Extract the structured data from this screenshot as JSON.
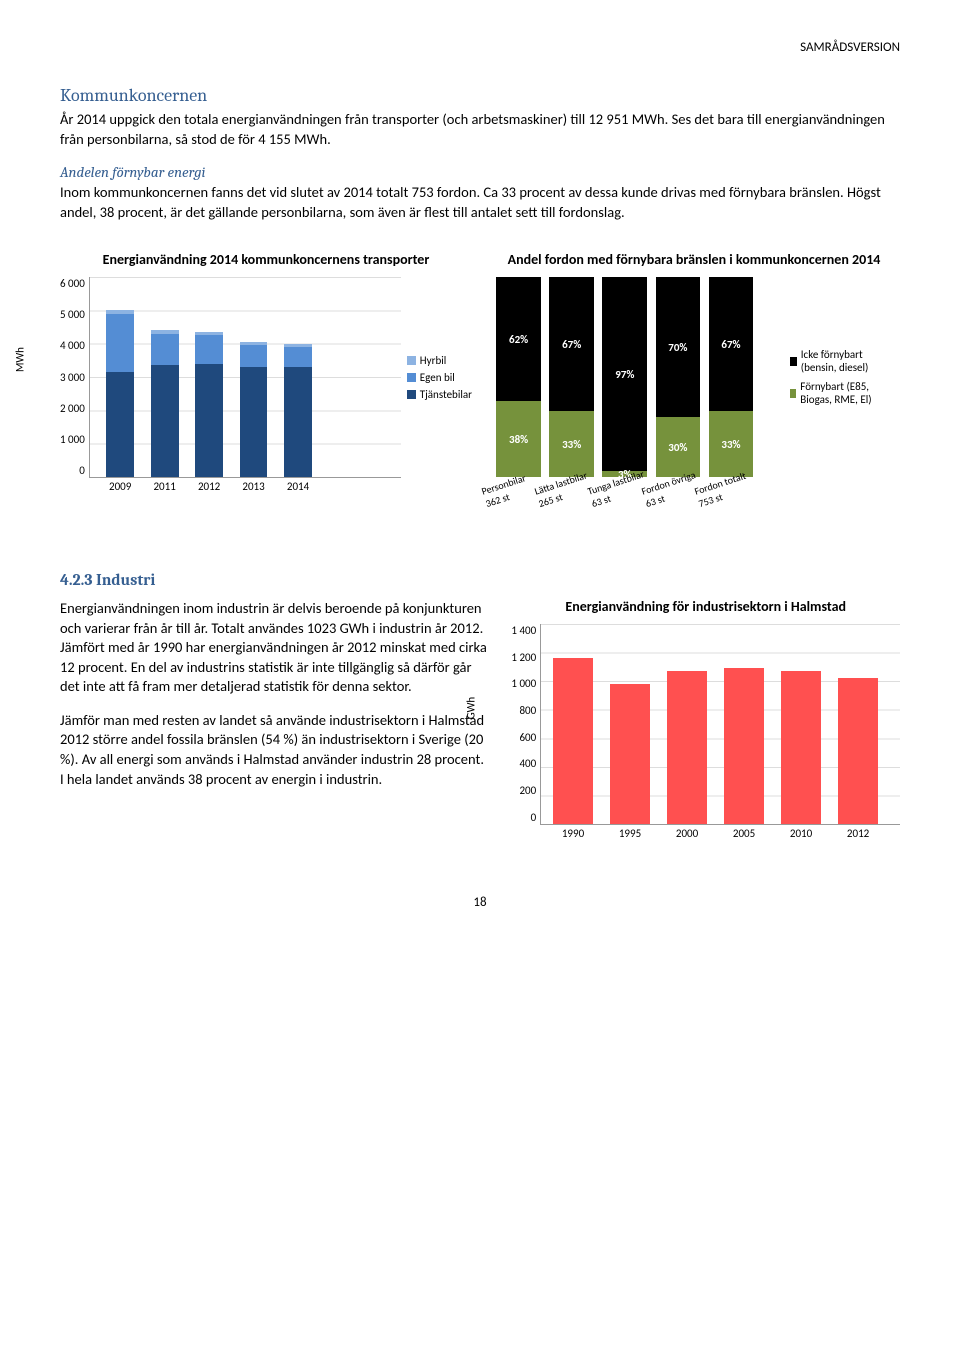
{
  "header": "SAMRÅDSVERSION",
  "s1_title": "Kommunkoncernen",
  "s1_p1": "År 2014 uppgick den totala energianvändningen från transporter (och arbetsmaskiner) till 12 951 MWh. Ses det bara till energianvändningen från personbilarna, så stod de för 4 155 MWh.",
  "s1_sub": "Andelen förnybar energi",
  "s1_p2": "Inom kommunkoncernen fanns det vid slutet av 2014 totalt 753 fordon. Ca 33 procent av dessa kunde drivas med förnybara bränslen. Högst andel, 38 procent, är det gällande personbilarna, som även är flest till antalet sett till fordonslag.",
  "chart1": {
    "title": "Energianvändning 2014 kommunkoncernens transporter",
    "y_label": "MWh",
    "y_max": 6000,
    "y_ticks": [
      "6 000",
      "5 000",
      "4 000",
      "3 000",
      "2 000",
      "1 000",
      "0"
    ],
    "categories": [
      "2009",
      "2011",
      "2012",
      "2013",
      "2014"
    ],
    "series": [
      {
        "name": "Hyrbil",
        "color": "#8db3e2"
      },
      {
        "name": "Egen bil",
        "color": "#548dd4"
      },
      {
        "name": "Tjänstebilar",
        "color": "#1f497d"
      }
    ],
    "stacks": [
      {
        "tj": 3150,
        "eg": 1750,
        "hy": 100
      },
      {
        "tj": 3350,
        "eg": 950,
        "hy": 100
      },
      {
        "tj": 3400,
        "eg": 850,
        "hy": 100
      },
      {
        "tj": 3300,
        "eg": 650,
        "hy": 100
      },
      {
        "tj": 3300,
        "eg": 600,
        "hy": 100
      }
    ]
  },
  "chart2": {
    "title": "Andel fordon med förnybara bränslen i kommunkoncernen 2014",
    "legend": [
      {
        "name": "Icke förnybart (bensin, diesel)",
        "color": "#000000"
      },
      {
        "name": "Förnybart (E85, Biogas, RME, El)",
        "color": "#76923c"
      }
    ],
    "bars": [
      {
        "cat": "Personbilar 362 st",
        "icke": 62,
        "forn": 38
      },
      {
        "cat": "Lätta lastbilar 265 st",
        "icke": 67,
        "forn": 33
      },
      {
        "cat": "Tunga lastbilar 63 st",
        "icke": 97,
        "forn": 3
      },
      {
        "cat": "Fordon övriga 63 st",
        "icke": 70,
        "forn": 30
      },
      {
        "cat": "Fordon totalt 753 st",
        "icke": 67,
        "forn": 33
      }
    ]
  },
  "s2_title": "4.2.3 Industri",
  "s2_p1": "Energianvändningen inom industrin är delvis beroende på konjunkturen och varierar från år till år. Totalt användes 1023 GWh i industrin år 2012. Jämfört med år 1990 har energianvändningen år 2012 minskat med cirka 12 procent. En del av industrins statistik är inte tillgänglig så därför går det inte att få fram mer detaljerad statistik för denna sektor.",
  "s2_p2": "Jämför man med resten av landet så använde industrisektorn i Halmstad 2012 större andel fossila bränslen (54 %) än industrisektorn i Sverige (20 %). Av all energi som används i Halmstad använder industrin 28 procent. I hela landet används 38 procent av energin i industrin.",
  "chart3": {
    "title": "Energianvändning för industrisektorn i Halmstad",
    "y_label": "GWh",
    "y_max": 1400,
    "y_ticks": [
      "1 400",
      "1 200",
      "1 000",
      "800",
      "600",
      "400",
      "200",
      "0"
    ],
    "color": "#ff5050",
    "bars": [
      {
        "x": "1990",
        "v": 1160
      },
      {
        "x": "1995",
        "v": 980
      },
      {
        "x": "2000",
        "v": 1070
      },
      {
        "x": "2005",
        "v": 1090
      },
      {
        "x": "2010",
        "v": 1070
      },
      {
        "x": "2012",
        "v": 1020
      }
    ]
  },
  "page_num": "18"
}
